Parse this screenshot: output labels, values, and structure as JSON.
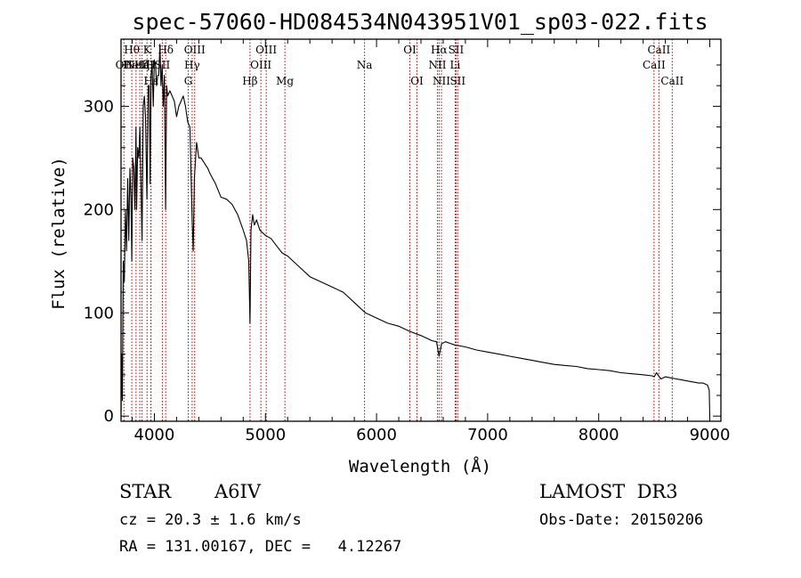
{
  "chart_data": {
    "type": "line",
    "title": "spec-57060-HD084534N043951V01_sp03-022.fits",
    "xlabel": "Wavelength (Å)",
    "ylabel": "Flux (relative)",
    "xlim": [
      3700,
      9100
    ],
    "ylim": [
      -5,
      365
    ],
    "xticks": [
      4000,
      5000,
      6000,
      7000,
      8000,
      9000
    ],
    "yticks": [
      0,
      100,
      200,
      300
    ],
    "xtick_labels": [
      "4000",
      "5000",
      "6000",
      "7000",
      "8000",
      "9000"
    ],
    "ytick_labels": [
      "0",
      "100",
      "200",
      "300"
    ],
    "series": [
      {
        "name": "spectrum",
        "x": [
          3700,
          3705,
          3712,
          3720,
          3730,
          3740,
          3750,
          3760,
          3770,
          3780,
          3790,
          3797,
          3805,
          3815,
          3825,
          3835,
          3840,
          3850,
          3860,
          3870,
          3880,
          3889,
          3900,
          3910,
          3920,
          3933,
          3945,
          3955,
          3962,
          3970,
          3980,
          3990,
          4000,
          4010,
          4020,
          4030,
          4040,
          4050,
          4060,
          4070,
          4080,
          4090,
          4101,
          4110,
          4120,
          4140,
          4160,
          4180,
          4200,
          4220,
          4240,
          4260,
          4280,
          4300,
          4320,
          4340,
          4350,
          4360,
          4380,
          4400,
          4420,
          4450,
          4480,
          4500,
          4550,
          4600,
          4650,
          4700,
          4750,
          4800,
          4830,
          4850,
          4861,
          4870,
          4885,
          4900,
          4920,
          4950,
          5000,
          5050,
          5100,
          5150,
          5200,
          5300,
          5400,
          5500,
          5600,
          5700,
          5800,
          5900,
          6000,
          6100,
          6200,
          6300,
          6400,
          6500,
          6540,
          6563,
          6585,
          6620,
          6700,
          6800,
          6900,
          7000,
          7100,
          7200,
          7300,
          7400,
          7500,
          7600,
          7700,
          7800,
          7900,
          8000,
          8100,
          8200,
          8300,
          8400,
          8480,
          8500,
          8520,
          8560,
          8600,
          8650,
          8700,
          8750,
          8800,
          8850,
          8900,
          8940,
          8960,
          8980,
          8995,
          9000
        ],
        "values": [
          3,
          60,
          15,
          150,
          130,
          200,
          160,
          230,
          170,
          240,
          210,
          150,
          250,
          240,
          200,
          280,
          200,
          260,
          250,
          280,
          220,
          170,
          300,
          310,
          290,
          210,
          320,
          320,
          225,
          330,
          340,
          300,
          345,
          340,
          320,
          330,
          330,
          360,
          320,
          340,
          300,
          330,
          200,
          320,
          310,
          315,
          310,
          305,
          290,
          300,
          305,
          310,
          300,
          285,
          280,
          190,
          160,
          230,
          265,
          250,
          250,
          245,
          240,
          235,
          225,
          212,
          210,
          205,
          195,
          180,
          170,
          150,
          90,
          180,
          195,
          185,
          190,
          180,
          175,
          172,
          165,
          158,
          155,
          145,
          135,
          130,
          125,
          120,
          110,
          100,
          95,
          90,
          87,
          82,
          78,
          73,
          72,
          58,
          70,
          72,
          69,
          67,
          64,
          62,
          60,
          58,
          56,
          54,
          52,
          50,
          49,
          48,
          46,
          45,
          44,
          42,
          41,
          40,
          39,
          38,
          42,
          36,
          38,
          37,
          36,
          35,
          34,
          33,
          32,
          32,
          31,
          30,
          25,
          0
        ]
      }
    ],
    "line_markers": [
      {
        "x": 3797,
        "name": "Hθ",
        "row": 0
      },
      {
        "x": 3726,
        "name": "OII",
        "row": 1
      },
      {
        "x": 3869,
        "name": "NeIII",
        "row": 1
      },
      {
        "x": 3835,
        "name": "Heta",
        "row": 1
      },
      {
        "x": 3889,
        "name": "Hζ",
        "row": 1
      },
      {
        "x": 3934,
        "name": "K",
        "row": 0
      },
      {
        "x": 3968,
        "name": "H",
        "row": 1
      },
      {
        "x": 3970,
        "name": "Hε",
        "row": 2
      },
      {
        "x": 4072,
        "name": "SII",
        "row": 1
      },
      {
        "x": 4102,
        "name": "Hδ",
        "row": 0
      },
      {
        "x": 4305,
        "name": "G",
        "row": 2
      },
      {
        "x": 4340,
        "name": "Hγ",
        "row": 1
      },
      {
        "x": 4363,
        "name": "OIII",
        "row": 0
      },
      {
        "x": 4861,
        "name": "Hβ",
        "row": 2
      },
      {
        "x": 4959,
        "name": "OIII",
        "row": 1
      },
      {
        "x": 5007,
        "name": "OIII",
        "row": 0
      },
      {
        "x": 5175,
        "name": "Mg",
        "row": 2
      },
      {
        "x": 5892,
        "name": "Na",
        "row": 1
      },
      {
        "x": 6300,
        "name": "OI",
        "row": 0
      },
      {
        "x": 6364,
        "name": "OI",
        "row": 2
      },
      {
        "x": 6548,
        "name": "NII",
        "row": 1
      },
      {
        "x": 6563,
        "name": "Hα",
        "row": 0
      },
      {
        "x": 6584,
        "name": "NII",
        "row": 2
      },
      {
        "x": 6708,
        "name": "Li",
        "row": 1
      },
      {
        "x": 6716,
        "name": "SII",
        "row": 0
      },
      {
        "x": 6731,
        "name": "SII",
        "row": 2
      },
      {
        "x": 8498,
        "name": "CaII",
        "row": 1
      },
      {
        "x": 8542,
        "name": "CaII",
        "row": 0
      },
      {
        "x": 8662,
        "name": "CaII",
        "row": 2
      }
    ]
  },
  "info": {
    "object_class": "STAR",
    "subclass": "A6IV",
    "survey": "LAMOST  DR3",
    "redshift": "cz = 20.3 ± 1.6 km/s",
    "obs_date": "Obs-Date: 20150206",
    "coords": "RA = 131.00167, DEC =   4.12267"
  },
  "colors": {
    "spectrum": "#000000",
    "marker": "#c00000",
    "axis": "#000000"
  }
}
